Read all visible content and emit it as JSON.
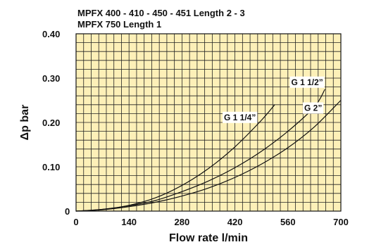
{
  "chart_data": {
    "type": "line",
    "title_lines": [
      "MPFX 400 - 410 - 450 - 451 Length 2 - 3",
      "MPFX 750 Length 1"
    ],
    "xlabel": "Flow rate l/min",
    "ylabel": "Δp bar",
    "xlim": [
      0,
      700
    ],
    "ylim": [
      0,
      0.4
    ],
    "xticks": [
      0,
      140,
      280,
      420,
      560,
      700
    ],
    "xtick_labels": [
      "0",
      "140",
      "280",
      "420",
      "560",
      "700"
    ],
    "yticks": [
      0,
      0.1,
      0.2,
      0.3,
      0.4
    ],
    "ytick_labels": [
      "0",
      "0.10",
      "0.20",
      "0.30",
      "0.40"
    ],
    "grid": true,
    "background_color": "#fdf0b8",
    "grid_color": "#222222",
    "series": [
      {
        "name": "G 1 1/4”",
        "color": "#111111",
        "x": [
          0,
          70,
          140,
          210,
          280,
          350,
          420,
          490,
          525
        ],
        "y": [
          0,
          0.004,
          0.013,
          0.03,
          0.058,
          0.096,
          0.145,
          0.205,
          0.24
        ]
      },
      {
        "name": "G 1 1/2”",
        "color": "#111111",
        "x": [
          0,
          70,
          140,
          210,
          280,
          350,
          420,
          490,
          560,
          630,
          658
        ],
        "y": [
          0,
          0.004,
          0.012,
          0.024,
          0.044,
          0.068,
          0.098,
          0.135,
          0.18,
          0.235,
          0.275
        ]
      },
      {
        "name": "G 2”",
        "color": "#111111",
        "x": [
          0,
          70,
          140,
          210,
          280,
          350,
          420,
          490,
          560,
          630,
          700
        ],
        "y": [
          0,
          0.003,
          0.01,
          0.02,
          0.034,
          0.052,
          0.076,
          0.106,
          0.143,
          0.19,
          0.25
        ]
      }
    ]
  }
}
